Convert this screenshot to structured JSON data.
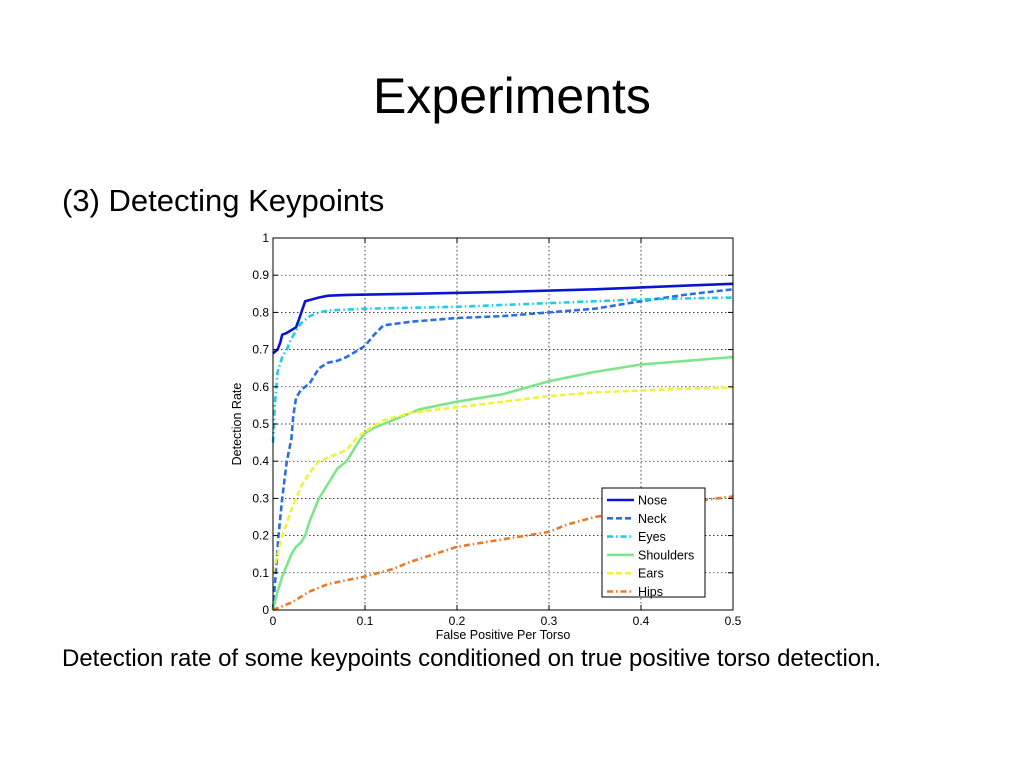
{
  "slide": {
    "title": "Experiments",
    "subtitle": "(3) Detecting Keypoints",
    "caption": "Detection rate of some keypoints conditioned on true positive torso detection."
  },
  "chart_data": {
    "type": "line",
    "title": "",
    "xlabel": "False Positive Per Torso",
    "ylabel": "Detection Rate",
    "xlim": [
      0,
      0.5
    ],
    "ylim": [
      0,
      1
    ],
    "xticks": [
      "0",
      "0.1",
      "0.2",
      "0.3",
      "0.4",
      "0.5"
    ],
    "yticks": [
      "0",
      "0.1",
      "0.2",
      "0.3",
      "0.4",
      "0.5",
      "0.6",
      "0.7",
      "0.8",
      "0.9",
      "1"
    ],
    "grid": true,
    "legend_position": "bottom-right",
    "series": [
      {
        "name": "Nose",
        "color": "#0a14d2",
        "style": "solid",
        "x": [
          0,
          0.005,
          0.008,
          0.01,
          0.015,
          0.025,
          0.028,
          0.035,
          0.05,
          0.06,
          0.08,
          0.15,
          0.25,
          0.35,
          0.45,
          0.5
        ],
        "y": [
          0.69,
          0.7,
          0.72,
          0.74,
          0.745,
          0.76,
          0.78,
          0.83,
          0.84,
          0.845,
          0.847,
          0.85,
          0.855,
          0.862,
          0.872,
          0.877
        ]
      },
      {
        "name": "Neck",
        "color": "#2a6ee6",
        "style": "dash",
        "x": [
          0,
          0.003,
          0.006,
          0.01,
          0.015,
          0.02,
          0.022,
          0.025,
          0.03,
          0.035,
          0.04,
          0.045,
          0.05,
          0.06,
          0.07,
          0.08,
          0.09,
          0.1,
          0.11,
          0.12,
          0.15,
          0.2,
          0.25,
          0.3,
          0.35,
          0.4,
          0.45,
          0.5
        ],
        "y": [
          0.0,
          0.1,
          0.2,
          0.3,
          0.4,
          0.46,
          0.52,
          0.57,
          0.59,
          0.6,
          0.61,
          0.63,
          0.65,
          0.665,
          0.67,
          0.68,
          0.695,
          0.71,
          0.74,
          0.765,
          0.775,
          0.785,
          0.79,
          0.8,
          0.81,
          0.83,
          0.848,
          0.862
        ]
      },
      {
        "name": "Eyes",
        "color": "#1ecde6",
        "style": "dashdot",
        "x": [
          0,
          0.002,
          0.005,
          0.01,
          0.015,
          0.02,
          0.03,
          0.04,
          0.05,
          0.06,
          0.1,
          0.2,
          0.3,
          0.4,
          0.5
        ],
        "y": [
          0.45,
          0.55,
          0.64,
          0.68,
          0.7,
          0.73,
          0.77,
          0.79,
          0.8,
          0.805,
          0.81,
          0.815,
          0.825,
          0.835,
          0.84
        ]
      },
      {
        "name": "Shoulders",
        "color": "#7de68a",
        "style": "solid",
        "x": [
          0,
          0.005,
          0.01,
          0.015,
          0.02,
          0.025,
          0.03,
          0.035,
          0.04,
          0.045,
          0.05,
          0.055,
          0.06,
          0.065,
          0.07,
          0.075,
          0.08,
          0.085,
          0.09,
          0.095,
          0.1,
          0.11,
          0.12,
          0.14,
          0.16,
          0.18,
          0.2,
          0.25,
          0.3,
          0.35,
          0.4,
          0.45,
          0.5
        ],
        "y": [
          0.0,
          0.05,
          0.09,
          0.12,
          0.15,
          0.17,
          0.18,
          0.2,
          0.24,
          0.27,
          0.3,
          0.32,
          0.34,
          0.36,
          0.38,
          0.39,
          0.4,
          0.42,
          0.44,
          0.46,
          0.475,
          0.49,
          0.5,
          0.52,
          0.54,
          0.55,
          0.56,
          0.58,
          0.615,
          0.64,
          0.66,
          0.67,
          0.68
        ]
      },
      {
        "name": "Ears",
        "color": "#f2f23a",
        "style": "dash",
        "x": [
          0,
          0.005,
          0.01,
          0.02,
          0.03,
          0.04,
          0.05,
          0.06,
          0.07,
          0.08,
          0.09,
          0.1,
          0.12,
          0.15,
          0.2,
          0.25,
          0.3,
          0.35,
          0.4,
          0.45,
          0.5
        ],
        "y": [
          0.1,
          0.15,
          0.2,
          0.27,
          0.33,
          0.37,
          0.4,
          0.41,
          0.42,
          0.43,
          0.46,
          0.48,
          0.51,
          0.53,
          0.545,
          0.56,
          0.575,
          0.585,
          0.59,
          0.595,
          0.598
        ]
      },
      {
        "name": "Hips",
        "color": "#e87a28",
        "style": "dashdot",
        "x": [
          0,
          0.01,
          0.02,
          0.04,
          0.06,
          0.08,
          0.1,
          0.13,
          0.15,
          0.2,
          0.25,
          0.3,
          0.32,
          0.35,
          0.4,
          0.45,
          0.5
        ],
        "y": [
          0.0,
          0.01,
          0.02,
          0.05,
          0.07,
          0.08,
          0.09,
          0.11,
          0.13,
          0.17,
          0.19,
          0.21,
          0.23,
          0.25,
          0.27,
          0.29,
          0.305
        ]
      }
    ]
  }
}
